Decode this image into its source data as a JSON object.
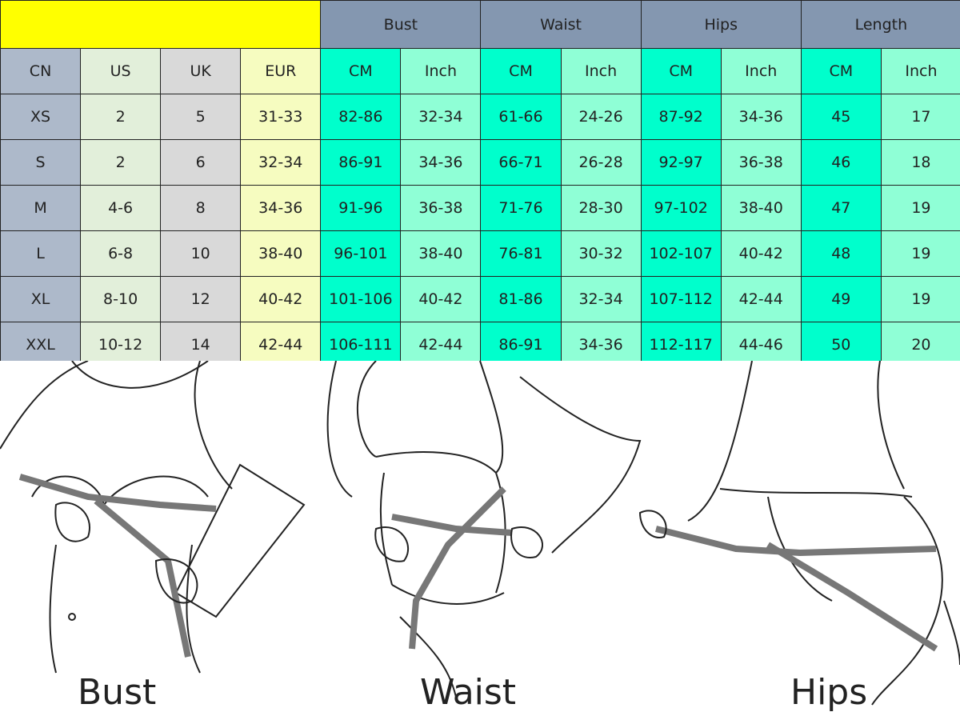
{
  "table": {
    "groups": [
      "Bust",
      "Waist",
      "Hips",
      "Length"
    ],
    "subheaders": [
      "CN",
      "US",
      "UK",
      "EUR",
      "CM",
      "Inch",
      "CM",
      "Inch",
      "CM",
      "Inch",
      "CM",
      "Inch"
    ],
    "rows": [
      [
        "XS",
        "2",
        "5",
        "31-33",
        "82-86",
        "32-34",
        "61-66",
        "24-26",
        "87-92",
        "34-36",
        "45",
        "17"
      ],
      [
        "S",
        "2",
        "6",
        "32-34",
        "86-91",
        "34-36",
        "66-71",
        "26-28",
        "92-97",
        "36-38",
        "46",
        "18"
      ],
      [
        "M",
        "4-6",
        "8",
        "34-36",
        "91-96",
        "36-38",
        "71-76",
        "28-30",
        "97-102",
        "38-40",
        "47",
        "19"
      ],
      [
        "L",
        "6-8",
        "10",
        "38-40",
        "96-101",
        "38-40",
        "76-81",
        "30-32",
        "102-107",
        "40-42",
        "48",
        "19"
      ],
      [
        "XL",
        "8-10",
        "12",
        "40-42",
        "101-106",
        "40-42",
        "81-86",
        "32-34",
        "107-112",
        "42-44",
        "49",
        "19"
      ],
      [
        "XXL",
        "10-12",
        "14",
        "42-44",
        "106-111",
        "42-44",
        "86-91",
        "34-36",
        "112-117",
        "44-46",
        "50",
        "20"
      ]
    ]
  },
  "illustrations": {
    "labels": [
      "Bust",
      "Waist",
      "Hips"
    ]
  },
  "colors": {
    "header_blank": "#ffff00",
    "group_header": "#8497b0",
    "cn": "#adb9ca",
    "us": "#e2efda",
    "uk": "#d9d9d9",
    "eur": "#f6fcc0",
    "cm": "#00ffcc",
    "inch": "#8fffd6"
  }
}
